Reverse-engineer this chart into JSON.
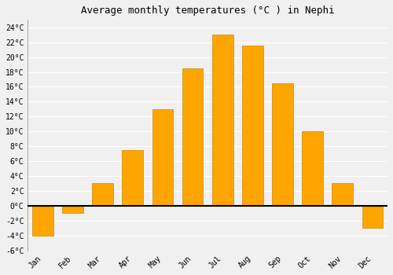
{
  "title": "Average monthly temperatures (°C ) in Nephi",
  "months": [
    "Jan",
    "Feb",
    "Mar",
    "Apr",
    "May",
    "Jun",
    "Jul",
    "Aug",
    "Sep",
    "Oct",
    "Nov",
    "Dec"
  ],
  "values": [
    -4.0,
    -1.0,
    3.0,
    7.5,
    13.0,
    18.5,
    23.0,
    21.5,
    16.5,
    10.0,
    3.0,
    -3.0
  ],
  "bar_color": "#FFA500",
  "bar_edge_color": "#CC8800",
  "ylim": [
    -6,
    25
  ],
  "yticks": [
    -6,
    -4,
    -2,
    0,
    2,
    4,
    6,
    8,
    10,
    12,
    14,
    16,
    18,
    20,
    22,
    24
  ],
  "ytick_labels": [
    "-6°C",
    "-4°C",
    "-2°C",
    "0°C",
    "2°C",
    "4°C",
    "6°C",
    "8°C",
    "10°C",
    "12°C",
    "14°C",
    "16°C",
    "18°C",
    "20°C",
    "22°C",
    "24°C"
  ],
  "background_color": "#f0f0f0",
  "grid_color": "#ffffff",
  "title_fontsize": 9,
  "tick_fontsize": 7,
  "font_family": "monospace",
  "bar_width": 0.7
}
